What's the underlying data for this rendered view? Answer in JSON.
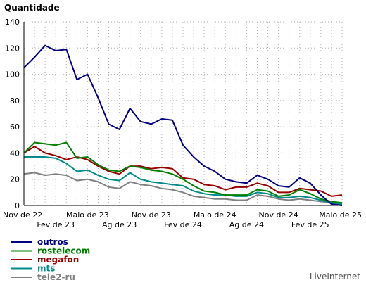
{
  "chart_data": {
    "type": "line",
    "ylabel": "Quantidade",
    "ylim": [
      0,
      140
    ],
    "yticks": [
      0,
      20,
      40,
      60,
      80,
      100,
      120,
      140
    ],
    "grid": true,
    "legend_position": "bottom-left",
    "x_labels_row1": [
      {
        "label": "Nov de 22",
        "index": 0
      },
      {
        "label": "Maio de 23",
        "index": 6
      },
      {
        "label": "Nov de 23",
        "index": 12
      },
      {
        "label": "Maio de 24",
        "index": 18
      },
      {
        "label": "Nov de 24",
        "index": 24
      },
      {
        "label": "Maio de 25",
        "index": 30
      }
    ],
    "x_labels_row2": [
      {
        "label": "Fev de 23",
        "index": 3
      },
      {
        "label": "Ag de 23",
        "index": 9
      },
      {
        "label": "Fev de 24",
        "index": 15
      },
      {
        "label": "Ag de 24",
        "index": 21
      },
      {
        "label": "Fev de 25",
        "index": 27
      }
    ],
    "series": [
      {
        "name": "outros",
        "color": "#000080",
        "values": [
          105,
          113,
          122,
          118,
          119,
          96,
          100,
          82,
          62,
          58,
          74,
          64,
          62,
          66,
          65,
          46,
          37,
          30,
          26,
          20,
          18,
          17,
          23,
          20,
          15,
          14,
          21,
          17,
          8,
          1,
          0
        ]
      },
      {
        "name": "rostelecom",
        "color": "#008000",
        "values": [
          40,
          48,
          47,
          46,
          48,
          36,
          37,
          31,
          27,
          26,
          30,
          29,
          27,
          26,
          24,
          20,
          15,
          11,
          10,
          8,
          8,
          8,
          12,
          11,
          7,
          8,
          12,
          9,
          5,
          3,
          2
        ]
      },
      {
        "name": "megafon",
        "color": "#990000",
        "values": [
          40,
          45,
          40,
          38,
          35,
          37,
          35,
          30,
          26,
          24,
          30,
          30,
          28,
          29,
          28,
          21,
          20,
          16,
          15,
          12,
          14,
          14,
          17,
          15,
          10,
          10,
          13,
          12,
          11,
          7,
          8
        ]
      },
      {
        "name": "mts",
        "color": "#008b8b",
        "values": [
          37,
          37,
          37,
          36,
          32,
          26,
          27,
          23,
          20,
          19,
          25,
          20,
          18,
          17,
          16,
          15,
          11,
          9,
          8,
          8,
          7,
          7,
          10,
          9,
          6,
          6,
          7,
          6,
          4,
          2,
          1
        ]
      },
      {
        "name": "tele2-ru",
        "color": "#808080",
        "values": [
          24,
          25,
          23,
          24,
          23,
          19,
          20,
          18,
          14,
          13,
          18,
          16,
          15,
          13,
          12,
          10,
          7,
          6,
          5,
          5,
          4,
          4,
          8,
          7,
          5,
          4,
          5,
          4,
          3,
          2,
          1
        ]
      }
    ]
  },
  "credit": "LiveInternet"
}
